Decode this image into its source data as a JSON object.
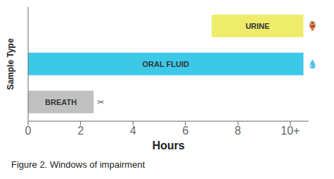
{
  "chart_data": {
    "type": "bar",
    "orientation": "horizontal",
    "title": "Figure 2. Windows of impairment",
    "x_label": "Hours",
    "y_label": "Sample Type",
    "categories": [
      "BREATH",
      "ORAL FLUID",
      "URINE"
    ],
    "values": [
      [
        0,
        2.5
      ],
      [
        0,
        10.5
      ],
      [
        7.0,
        10.5
      ]
    ],
    "colors": [
      "#c0c0c0",
      "#3cc8e8",
      "#eeec6a"
    ],
    "xlim": [
      0,
      10.7
    ],
    "xticks": [
      0,
      2,
      4,
      6,
      8,
      {
        "value": 10,
        "label": "10+"
      }
    ],
    "tick_labels": "x",
    "grid": false,
    "annotations": [
      {
        "text": "✂",
        "category": "BREATH"
      },
      {
        "text": "💧",
        "category": "ORAL FLUID"
      },
      {
        "text": "🏺",
        "category": "URINE"
      }
    ]
  }
}
